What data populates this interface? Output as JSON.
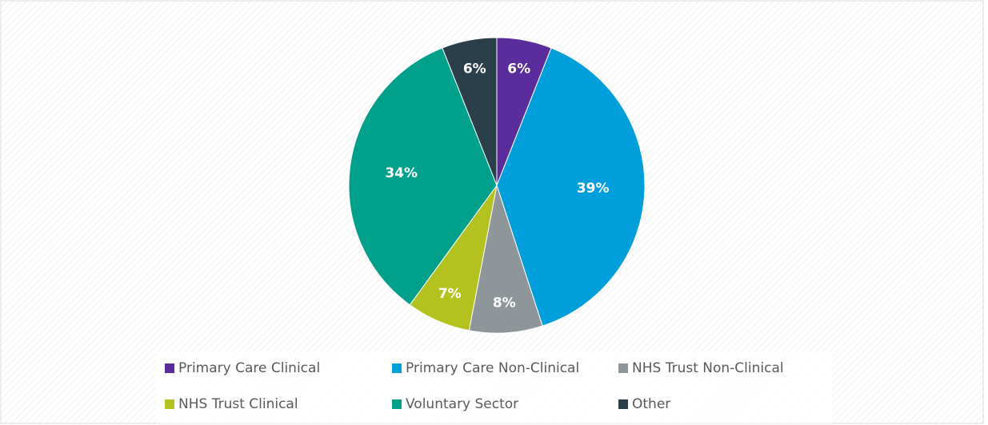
{
  "chart_data": {
    "type": "pie",
    "categories": [
      "Primary Care Clinical",
      "Primary Care Non-Clinical",
      "NHS Trust Non-Clinical",
      "NHS Trust Clinical",
      "Voluntary Sector",
      "Other"
    ],
    "values": [
      6,
      39,
      8,
      7,
      34,
      6
    ],
    "value_labels": [
      "6%",
      "39%",
      "8%",
      "7%",
      "34%",
      "6%"
    ],
    "colors": [
      "#5b2d9c",
      "#009fdb",
      "#8f969a",
      "#b3c21e",
      "#00a08b",
      "#2b3f4b"
    ],
    "legend": "bottom"
  }
}
